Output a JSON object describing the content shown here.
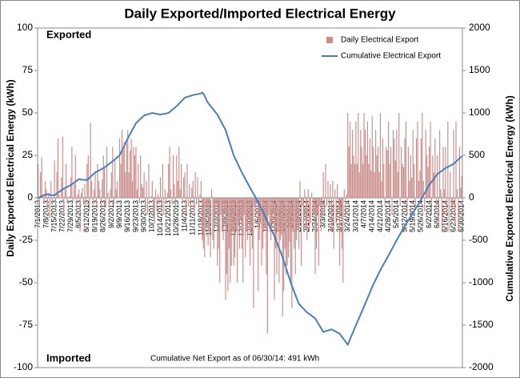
{
  "chart_data": {
    "type": "bar",
    "title": "Daily Exported/Imported Electrical Energy",
    "y_label": "Daily Exported Electrical Energy (kWh)",
    "y2_label": "Cumulative Exported Electrical Energy (kWh)",
    "label_top": "Exported",
    "label_bottom": "Imported",
    "note": "Cumulative Net Export as of 06/30/14:  491 kWh",
    "legend": "upper right",
    "ylim": [
      -100,
      100
    ],
    "yticks": [
      -100,
      -75,
      -50,
      -25,
      0,
      25,
      50,
      75,
      100
    ],
    "y2lim": [
      -2000,
      2000
    ],
    "y2ticks": [
      -2000,
      -1500,
      -1000,
      -500,
      0,
      500,
      1000,
      1500,
      2000
    ],
    "categories": [
      "7/1/2013",
      null,
      null,
      null,
      null,
      null,
      null,
      "7/8/2013",
      null,
      null,
      null,
      null,
      null,
      null,
      "7/15/2013",
      null,
      null,
      null,
      null,
      null,
      null,
      "7/22/2013",
      null,
      null,
      null,
      null,
      null,
      null,
      "7/29/2013",
      null,
      null,
      null,
      null,
      null,
      null,
      "8/5/2013",
      null,
      null,
      null,
      null,
      null,
      null,
      "8/12/2013",
      null,
      null,
      null,
      null,
      null,
      null,
      "8/19/2013",
      null,
      null,
      null,
      null,
      null,
      null,
      "8/26/2013",
      null,
      null,
      null,
      null,
      null,
      null,
      "9/2/2013",
      null,
      null,
      null,
      null,
      null,
      null,
      "9/9/2013",
      null,
      null,
      null,
      null,
      null,
      null,
      "9/16/2013",
      null,
      null,
      null,
      null,
      null,
      null,
      "9/23/2013",
      null,
      null,
      null,
      null,
      null,
      null,
      "9/30/2013",
      null,
      null,
      null,
      null,
      null,
      null,
      "10/7/2013",
      null,
      null,
      null,
      null,
      null,
      null,
      "10/14/2013",
      null,
      null,
      null,
      null,
      null,
      null,
      "10/21/2013",
      null,
      null,
      null,
      null,
      null,
      null,
      "10/28/2013",
      null,
      null,
      null,
      null,
      null,
      null,
      "11/4/2013",
      null,
      null,
      null,
      null,
      null,
      null,
      "11/11/2013",
      null,
      null,
      null,
      null,
      null,
      null,
      "11/18/2013",
      null,
      null,
      null,
      null,
      null,
      null,
      "11/25/2013",
      null,
      null,
      null,
      null,
      null,
      null,
      "12/2/2013",
      null,
      null,
      null,
      null,
      null,
      null,
      "12/9/2013",
      null,
      null,
      null,
      null,
      null,
      null,
      "12/16/2013",
      null,
      null,
      null,
      null,
      null,
      null,
      "12/23/2013",
      null,
      null,
      null,
      null,
      null,
      null,
      "12/30/2013",
      null,
      null,
      null,
      null,
      null,
      null,
      "1/6/2014",
      null,
      null,
      null,
      null,
      null,
      null,
      "1/13/2014",
      null,
      null,
      null,
      null,
      null,
      null,
      "1/20/2014",
      null,
      null,
      null,
      null,
      null,
      null,
      "1/27/2014",
      null,
      null,
      null,
      null,
      null,
      null,
      "2/3/2014",
      null,
      null,
      null,
      null,
      null,
      null,
      "2/10/2014",
      null,
      null,
      null,
      null,
      null,
      null,
      "2/17/2014",
      null,
      null,
      null,
      null,
      null,
      null,
      "2/24/2014",
      null,
      null,
      null,
      null,
      null,
      null,
      "3/3/2014",
      null,
      null,
      null,
      null,
      null,
      null,
      "3/10/2014",
      null,
      null,
      null,
      null,
      null,
      null,
      "3/17/2014",
      null,
      null,
      null,
      null,
      null,
      null,
      "3/24/2014",
      null,
      null,
      null,
      null,
      null,
      null,
      "3/31/2014",
      null,
      null,
      null,
      null,
      null,
      null,
      "4/7/2014",
      null,
      null,
      null,
      null,
      null,
      null,
      "4/14/2014",
      null,
      null,
      null,
      null,
      null,
      null,
      "4/21/2014",
      null,
      null,
      null,
      null,
      null,
      null,
      "4/28/2014",
      null,
      null,
      null,
      null,
      null,
      null,
      "5/5/2014",
      null,
      null,
      null,
      null,
      null,
      null,
      "5/12/2014",
      null,
      null,
      null,
      null,
      null,
      null,
      "5/19/2014",
      null,
      null,
      null,
      null,
      null,
      null,
      "5/26/2014",
      null,
      null,
      null,
      null,
      null,
      null,
      "6/2/2014",
      null,
      null,
      null,
      null,
      null,
      null,
      "6/9/2014",
      null,
      null,
      null,
      null,
      null,
      null,
      "6/16/2014",
      null,
      null,
      null,
      null,
      null,
      null,
      "6/23/2014",
      null,
      null,
      null,
      null,
      null,
      null,
      "6/30/2014"
    ],
    "series": [
      {
        "name": "Daily Electrical Export",
        "type": "bar",
        "color": "#c98e8c",
        "values": [
          20,
          -5,
          15,
          24,
          2,
          -3,
          10,
          5,
          -8,
          3,
          -12,
          10,
          -4,
          0,
          22,
          -6,
          15,
          35,
          2,
          0,
          12,
          36,
          -10,
          5,
          20,
          -3,
          0,
          1,
          12,
          30,
          -2,
          8,
          25,
          -5,
          2,
          5,
          -20,
          3,
          6,
          -4,
          8,
          -5,
          20,
          25,
          -8,
          44,
          10,
          -5,
          5,
          15,
          -4,
          20,
          10,
          5,
          -8,
          11,
          25,
          18,
          -5,
          30,
          3,
          -6,
          5,
          15,
          30,
          -4,
          22,
          5,
          10,
          0,
          35,
          20,
          40,
          28,
          33,
          15,
          32,
          40,
          15,
          28,
          35,
          10,
          30,
          25,
          30,
          5,
          20,
          -3,
          25,
          8,
          6,
          15,
          -8,
          10,
          -10,
          20,
          0,
          1,
          10,
          -12,
          -15,
          5,
          -8,
          2,
          -3,
          12,
          -6,
          20,
          -10,
          5,
          -3,
          3,
          20,
          30,
          5,
          -4,
          25,
          8,
          -6,
          25,
          10,
          30,
          5,
          20,
          -2,
          12,
          15,
          -10,
          20,
          -5,
          8,
          -6,
          6,
          10,
          -8,
          15,
          -4,
          12,
          -6,
          2,
          10,
          -25,
          -30,
          -35,
          -20,
          -5,
          -28,
          -20,
          -35,
          5,
          -25,
          -30,
          -10,
          -4,
          -40,
          -30,
          -50,
          -10,
          -20,
          -25,
          -8,
          -60,
          -45,
          -55,
          -30,
          -50,
          -40,
          -20,
          -40,
          -35,
          -20,
          -50,
          -15,
          -30,
          -13,
          -30,
          -50,
          -10,
          -35,
          -20,
          -25,
          -12,
          -40,
          -20,
          -30,
          -65,
          -5,
          -10,
          -2,
          -55,
          -25,
          -15,
          -40,
          -30,
          -20,
          -18,
          -45,
          -80,
          -10,
          -20,
          -25,
          -15,
          -8,
          -60,
          -30,
          -45,
          -20,
          -50,
          -25,
          -22,
          -70,
          -55,
          -30,
          -45,
          -40,
          -35,
          -26,
          -50,
          -65,
          -20,
          -30,
          -45,
          -25,
          -17,
          -30,
          10,
          -40,
          -5,
          -20,
          5,
          -18,
          -25,
          5,
          -20,
          -15,
          3,
          -8,
          -10,
          -45,
          -30,
          -10,
          -40,
          -5,
          -20,
          -11,
          15,
          -10,
          20,
          -5,
          10,
          -8,
          8,
          -20,
          10,
          -30,
          5,
          -15,
          8,
          -7,
          -40,
          -10,
          -30,
          -50,
          5,
          -10,
          2,
          50,
          30,
          45,
          20,
          40,
          25,
          20,
          45,
          20,
          50,
          15,
          40,
          30,
          20,
          50,
          40,
          25,
          45,
          20,
          35,
          16,
          48,
          30,
          15,
          40,
          25,
          30,
          15,
          50,
          10,
          35,
          20,
          -5,
          30,
          28,
          45,
          20,
          30,
          -10,
          40,
          35,
          22,
          40,
          15,
          50,
          -5,
          30,
          20,
          18,
          35,
          45,
          -10,
          30,
          10,
          25,
          12,
          40,
          20,
          -5,
          35,
          45,
          10,
          16,
          35,
          50,
          10,
          -8,
          40,
          25,
          18,
          30,
          45,
          -10,
          25,
          15,
          35,
          -7,
          25,
          -15,
          40,
          5,
          -20,
          30,
          5,
          30,
          -10,
          45,
          -20,
          15,
          -5,
          -6,
          40,
          -15,
          45,
          5,
          -20,
          30,
          6,
          13
        ]
      },
      {
        "name": "Cumulative Electrical Export",
        "type": "line",
        "axis": "y2",
        "color": "#4a7ebb",
        "values": [
          0,
          5,
          12,
          18,
          25,
          30,
          36,
          40,
          42,
          38,
          35,
          33,
          31,
          30,
          30,
          40,
          50,
          60,
          70,
          80,
          90,
          100,
          108,
          115,
          122,
          130,
          137,
          144,
          150,
          160,
          170,
          180,
          190,
          200,
          210,
          220,
          218,
          215,
          214,
          212,
          211,
          210,
          210,
          222,
          235,
          248,
          261,
          274,
          287,
          300,
          307,
          314,
          321,
          328,
          335,
          342,
          350,
          360,
          370,
          380,
          390,
          400,
          410,
          420,
          431,
          443,
          454,
          466,
          477,
          489,
          500,
          529,
          557,
          586,
          614,
          643,
          671,
          700,
          726,
          751,
          777,
          803,
          829,
          854,
          880,
          893,
          906,
          919,
          931,
          944,
          957,
          970,
          974,
          979,
          983,
          987,
          991,
          996,
          1000,
          997,
          994,
          991,
          989,
          986,
          983,
          980,
          983,
          986,
          989,
          991,
          994,
          997,
          1000,
          1011,
          1023,
          1034,
          1046,
          1057,
          1069,
          1080,
          1094,
          1109,
          1123,
          1137,
          1151,
          1166,
          1180,
          1184,
          1189,
          1193,
          1197,
          1201,
          1206,
          1210,
          1213,
          1216,
          1219,
          1221,
          1224,
          1227,
          1230,
          1240,
          1225,
          1200,
          1170,
          1140,
          1120,
          1100,
          1083,
          1066,
          1049,
          1031,
          1014,
          997,
          980,
          954,
          929,
          903,
          877,
          851,
          826,
          800,
          757,
          714,
          671,
          629,
          586,
          543,
          500,
          471,
          443,
          414,
          386,
          357,
          329,
          300,
          274,
          249,
          223,
          197,
          171,
          146,
          120,
          96,
          71,
          47,
          23,
          -1,
          -26,
          -50,
          -79,
          -107,
          -136,
          -164,
          -193,
          -221,
          -250,
          -279,
          -307,
          -336,
          -364,
          -393,
          -421,
          -450,
          -486,
          -521,
          -557,
          -593,
          -629,
          -664,
          -700,
          -743,
          -786,
          -829,
          -871,
          -914,
          -957,
          -1000,
          -1036,
          -1071,
          -1107,
          -1143,
          -1179,
          -1214,
          -1250,
          -1264,
          -1279,
          -1293,
          -1307,
          -1321,
          -1336,
          -1350,
          -1360,
          -1370,
          -1380,
          -1390,
          -1400,
          -1410,
          -1420,
          -1443,
          -1466,
          -1489,
          -1511,
          -1534,
          -1557,
          -1580,
          -1576,
          -1571,
          -1567,
          -1563,
          -1559,
          -1554,
          -1550,
          -1557,
          -1564,
          -1571,
          -1579,
          -1586,
          -1593,
          -1600,
          -1619,
          -1637,
          -1656,
          -1674,
          -1693,
          -1711,
          -1730,
          -1697,
          -1664,
          -1631,
          -1599,
          -1566,
          -1533,
          -1500,
          -1469,
          -1437,
          -1406,
          -1374,
          -1343,
          -1311,
          -1280,
          -1247,
          -1214,
          -1181,
          -1149,
          -1116,
          -1083,
          -1050,
          -1021,
          -993,
          -964,
          -936,
          -907,
          -879,
          -850,
          -826,
          -801,
          -777,
          -753,
          -729,
          -704,
          -680,
          -654,
          -629,
          -603,
          -577,
          -551,
          -526,
          -500,
          -476,
          -451,
          -427,
          -403,
          -379,
          -354,
          -330,
          -309,
          -287,
          -266,
          -244,
          -223,
          -201,
          -180,
          -157,
          -134,
          -111,
          -89,
          -66,
          -43,
          -20,
          4,
          29,
          53,
          77,
          101,
          126,
          150,
          169,
          187,
          206,
          224,
          243,
          261,
          280,
          290,
          300,
          310,
          320,
          330,
          340,
          350,
          357,
          364,
          371,
          379,
          386,
          393,
          400,
          413,
          426,
          439,
          452,
          465,
          478,
          491
        ]
      }
    ]
  }
}
